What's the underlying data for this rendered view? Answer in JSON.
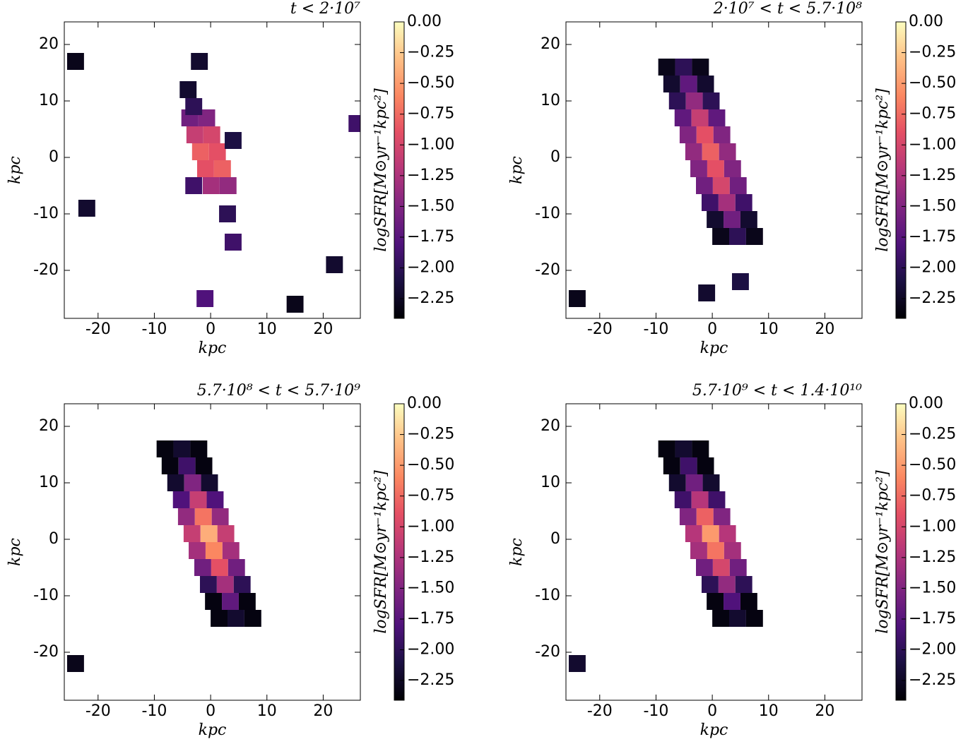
{
  "chart_data": [
    {
      "type": "heatmap",
      "title": "t < 2·10⁷",
      "xlabel": "kpc",
      "ylabel": "kpc",
      "colorbar_label": "logSFR[M⊙yr⁻¹kpc²]",
      "colormap": "magma",
      "xlim": [
        -26,
        26.6
      ],
      "ylim": [
        -28.5,
        24
      ],
      "xticks": [
        -20,
        -10,
        0,
        10,
        20
      ],
      "yticks": [
        -20,
        -10,
        0,
        10,
        20
      ],
      "clim": [
        -2.41,
        0
      ],
      "cticks": [
        {
          "value": 0,
          "label": "0.00"
        },
        {
          "value": -0.25,
          "label": "−0.25"
        },
        {
          "value": -0.5,
          "label": "−0.50"
        },
        {
          "value": -0.75,
          "label": "−0.75"
        },
        {
          "value": -1,
          "label": "−1.00"
        },
        {
          "value": -1.25,
          "label": "−1.25"
        },
        {
          "value": -1.5,
          "label": "−1.50"
        },
        {
          "value": -1.75,
          "label": "−1.75"
        },
        {
          "value": -2,
          "label": "−2.00"
        },
        {
          "value": -2.25,
          "label": "−2.25"
        }
      ],
      "x": [
        -3.7,
        -0.7,
        -2.8,
        0.2,
        -1.8,
        1.2,
        -0.9,
        2.1,
        0.1,
        3.1,
        -3,
        -4,
        3,
        4,
        -1,
        -3,
        4,
        -22,
        -24,
        22,
        26,
        -2,
        15
      ],
      "y": [
        7,
        7,
        4,
        4,
        1,
        1,
        -2,
        -2,
        -5,
        -5,
        9,
        12,
        -10,
        -15,
        -25,
        -5,
        3,
        -9,
        17,
        -19,
        6,
        17,
        -26
      ],
      "values": [
        -1.6,
        -1.5,
        -1.1,
        -1.0,
        -0.8,
        -0.9,
        -0.9,
        -0.8,
        -1.3,
        -1.4,
        -2.0,
        -2.2,
        -2.0,
        -1.9,
        -1.8,
        -1.9,
        -2.1,
        -2.2,
        -2.3,
        -2.2,
        -1.9,
        -2.2,
        -2.3
      ]
    },
    {
      "type": "heatmap",
      "title": "2·10⁷ < t < 5.7·10⁸",
      "xlabel": "kpc",
      "ylabel": "kpc",
      "colorbar_label": "logSFR[M⊙yr⁻¹kpc²]",
      "colormap": "magma",
      "xlim": [
        -26,
        26.6
      ],
      "ylim": [
        -28.5,
        24
      ],
      "xticks": [
        -20,
        -10,
        0,
        10,
        20
      ],
      "yticks": [
        -20,
        -10,
        0,
        10,
        20
      ],
      "clim": [
        -2.41,
        0
      ],
      "cticks": [
        {
          "value": 0,
          "label": "0.00"
        },
        {
          "value": -0.25,
          "label": "−0.25"
        },
        {
          "value": -0.5,
          "label": "−0.50"
        },
        {
          "value": -0.75,
          "label": "−0.75"
        },
        {
          "value": -1,
          "label": "−1.00"
        },
        {
          "value": -1.25,
          "label": "−1.25"
        },
        {
          "value": -1.5,
          "label": "−1.50"
        },
        {
          "value": -1.75,
          "label": "−1.75"
        },
        {
          "value": -2,
          "label": "−2.00"
        },
        {
          "value": -2.25,
          "label": "−2.25"
        }
      ],
      "x": [
        -8.1,
        -5.1,
        -2.1,
        -7.2,
        -4.2,
        -1.2,
        -6.2,
        -3.2,
        -0.2,
        -5.2,
        -2.2,
        0.8,
        -4.3,
        -1.3,
        1.7,
        -3.3,
        -0.3,
        2.7,
        -2.4,
        0.6,
        3.6,
        -1.4,
        1.6,
        4.6,
        -0.4,
        2.6,
        5.6,
        0.5,
        3.5,
        6.5,
        1.5,
        4.5,
        7.5,
        -1,
        5,
        -24
      ],
      "y": [
        16,
        16,
        16,
        13,
        13,
        13,
        10,
        10,
        10,
        7,
        7,
        7,
        4,
        4,
        4,
        1,
        1,
        1,
        -2,
        -2,
        -2,
        -5,
        -5,
        -5,
        -8,
        -8,
        -8,
        -11,
        -11,
        -11,
        -14,
        -14,
        -14,
        -24,
        -22,
        -25
      ],
      "values": [
        -2.3,
        -2.0,
        -2.3,
        -2.2,
        -1.7,
        -2.2,
        -2.0,
        -1.4,
        -2.0,
        -1.7,
        -1.1,
        -1.7,
        -1.5,
        -0.9,
        -1.5,
        -1.4,
        -0.8,
        -1.4,
        -1.5,
        -0.9,
        -1.5,
        -1.6,
        -1.0,
        -1.6,
        -1.9,
        -1.3,
        -1.9,
        -2.2,
        -1.6,
        -2.2,
        -2.3,
        -2.0,
        -2.3,
        -2.2,
        -2.1,
        -2.3
      ]
    },
    {
      "type": "heatmap",
      "title": "5.7·10⁸ < t < 5.7·10⁹",
      "xlabel": "kpc",
      "ylabel": "kpc",
      "colorbar_label": "logSFR[M⊙yr⁻¹kpc²]",
      "colormap": "magma",
      "xlim": [
        -26,
        26.6
      ],
      "ylim": [
        -28.5,
        24
      ],
      "xticks": [
        -20,
        -10,
        0,
        10,
        20
      ],
      "yticks": [
        -20,
        -10,
        0,
        10,
        20
      ],
      "clim": [
        -2.41,
        0
      ],
      "cticks": [
        {
          "value": 0,
          "label": "0.00"
        },
        {
          "value": -0.25,
          "label": "−0.25"
        },
        {
          "value": -0.5,
          "label": "−0.50"
        },
        {
          "value": -0.75,
          "label": "−0.75"
        },
        {
          "value": -1,
          "label": "−1.00"
        },
        {
          "value": -1.25,
          "label": "−1.25"
        },
        {
          "value": -1.5,
          "label": "−1.50"
        },
        {
          "value": -1.75,
          "label": "−1.75"
        },
        {
          "value": -2,
          "label": "−2.00"
        },
        {
          "value": -2.25,
          "label": "−2.25"
        }
      ],
      "x": [
        -8.1,
        -5.1,
        -2.1,
        -7.2,
        -4.2,
        -1.2,
        -6.2,
        -3.2,
        -0.2,
        -5.2,
        -2.2,
        0.8,
        -4.3,
        -1.3,
        1.7,
        -3.3,
        -0.3,
        2.7,
        -2.4,
        0.6,
        3.6,
        -1.4,
        1.6,
        4.6,
        -0.4,
        2.6,
        5.6,
        0.5,
        3.5,
        6.5,
        1.5,
        4.5,
        7.5,
        -24
      ],
      "y": [
        16,
        16,
        16,
        13,
        13,
        13,
        10,
        10,
        10,
        7,
        7,
        7,
        4,
        4,
        4,
        1,
        1,
        1,
        -2,
        -2,
        -2,
        -5,
        -5,
        -5,
        -8,
        -8,
        -8,
        -11,
        -11,
        -11,
        -14,
        -14,
        -14,
        -22
      ],
      "values": [
        -2.35,
        -2.2,
        -2.35,
        -2.35,
        -1.9,
        -2.35,
        -2.2,
        -1.5,
        -2.2,
        -1.8,
        -1.1,
        -1.8,
        -1.4,
        -0.7,
        -1.4,
        -1.1,
        -0.4,
        -1.1,
        -1.3,
        -0.6,
        -1.3,
        -1.6,
        -0.9,
        -1.6,
        -2.0,
        -1.3,
        -2.0,
        -2.35,
        -1.7,
        -2.35,
        -2.35,
        -2.2,
        -2.35,
        -2.3
      ]
    },
    {
      "type": "heatmap",
      "title": "5.7·10⁹ < t < 1.4·10¹⁰",
      "xlabel": "kpc",
      "ylabel": "kpc",
      "colorbar_label": "logSFR[M⊙yr⁻¹kpc²]",
      "colormap": "magma",
      "xlim": [
        -26,
        26.6
      ],
      "ylim": [
        -28.5,
        24
      ],
      "xticks": [
        -20,
        -10,
        0,
        10,
        20
      ],
      "yticks": [
        -20,
        -10,
        0,
        10,
        20
      ],
      "clim": [
        -2.41,
        0
      ],
      "cticks": [
        {
          "value": 0,
          "label": "0.00"
        },
        {
          "value": -0.25,
          "label": "−0.25"
        },
        {
          "value": -0.5,
          "label": "−0.50"
        },
        {
          "value": -0.75,
          "label": "−0.75"
        },
        {
          "value": -1,
          "label": "−1.00"
        },
        {
          "value": -1.25,
          "label": "−1.25"
        },
        {
          "value": -1.5,
          "label": "−1.50"
        },
        {
          "value": -1.75,
          "label": "−1.75"
        },
        {
          "value": -2,
          "label": "−2.00"
        },
        {
          "value": -2.25,
          "label": "−2.25"
        }
      ],
      "x": [
        -8.1,
        -5.1,
        -2.1,
        -7.2,
        -4.2,
        -1.2,
        -6.2,
        -3.2,
        -0.2,
        -5.2,
        -2.2,
        0.8,
        -4.3,
        -1.3,
        1.7,
        -3.3,
        -0.3,
        2.7,
        -2.4,
        0.6,
        3.6,
        -1.4,
        1.6,
        4.6,
        -0.4,
        2.6,
        5.6,
        0.5,
        3.5,
        6.5,
        1.5,
        4.5,
        7.5,
        -24
      ],
      "y": [
        16,
        16,
        16,
        13,
        13,
        13,
        10,
        10,
        10,
        7,
        7,
        7,
        4,
        4,
        4,
        1,
        1,
        1,
        -2,
        -2,
        -2,
        -5,
        -5,
        -5,
        -8,
        -8,
        -8,
        -11,
        -11,
        -11,
        -14,
        -14,
        -14,
        -22
      ],
      "values": [
        -2.35,
        -2.2,
        -2.35,
        -2.35,
        -1.9,
        -2.35,
        -2.2,
        -1.6,
        -2.2,
        -1.9,
        -1.2,
        -1.9,
        -1.5,
        -0.8,
        -1.5,
        -1.2,
        -0.5,
        -1.2,
        -1.3,
        -0.7,
        -1.3,
        -1.6,
        -1.0,
        -1.6,
        -2.0,
        -1.4,
        -2.0,
        -2.35,
        -1.8,
        -2.35,
        -2.35,
        -2.2,
        -2.35,
        -2.2
      ]
    }
  ]
}
